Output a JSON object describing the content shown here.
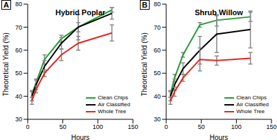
{
  "chart_data": [
    {
      "type": "line",
      "title": "Hybrid Poplar",
      "annotation": "A",
      "x_label": "Hours",
      "y_label": "Theoretical Yield (%)",
      "x": [
        6,
        12,
        24,
        48,
        72,
        120
      ],
      "xlim": [
        0,
        150
      ],
      "xticks": [
        0,
        50,
        100,
        150
      ],
      "ylim": [
        30,
        80
      ],
      "yticks": [
        30,
        40,
        50,
        60,
        70,
        80
      ],
      "grid": false,
      "legend": "lower right",
      "series": [
        {
          "name": "Clean Chips",
          "color": "#1e9e2e",
          "marker": "none",
          "values": [
            41,
            46,
            56,
            65,
            70,
            77.5
          ],
          "errors": [
            1.5,
            1.5,
            2,
            1.5,
            2,
            1
          ]
        },
        {
          "name": "Air Classified",
          "color": "#000000",
          "marker": "none",
          "values": [
            40,
            45,
            53,
            63,
            70,
            76
          ],
          "errors": [
            2,
            2,
            2.5,
            2.5,
            5.5,
            2.5
          ]
        },
        {
          "name": "Whole Tree",
          "color": "#e3231c",
          "marker": "none",
          "values": [
            38,
            43,
            50,
            58,
            63,
            67.5
          ],
          "errors": [
            1.5,
            1.5,
            1.5,
            2.5,
            3,
            3.5
          ]
        }
      ]
    },
    {
      "type": "line",
      "title": "Shrub Willow",
      "annotation": "B",
      "x_label": "Hours",
      "y_label": "Theoretical Yield (%)",
      "x": [
        6,
        12,
        24,
        48,
        72,
        120
      ],
      "xlim": [
        0,
        150
      ],
      "xticks": [
        0,
        50,
        100,
        150
      ],
      "ylim": [
        30,
        80
      ],
      "yticks": [
        30,
        40,
        50,
        60,
        70,
        80
      ],
      "grid": false,
      "legend": "lower right",
      "series": [
        {
          "name": "Clean Chips",
          "color": "#1e9e2e",
          "marker": "none",
          "values": [
            41,
            48,
            58,
            71,
            73,
            74.5
          ],
          "errors": [
            1.5,
            1.5,
            1,
            1,
            2.5,
            2
          ]
        },
        {
          "name": "Air Classified",
          "color": "#000000",
          "marker": "none",
          "values": [
            40,
            45,
            52,
            60,
            67,
            69
          ],
          "errors": [
            2,
            2.5,
            2.5,
            6,
            8,
            8
          ]
        },
        {
          "name": "Whole Tree",
          "color": "#e3231c",
          "marker": "none",
          "values": [
            38,
            42,
            48,
            56,
            55.5,
            56.5
          ],
          "errors": [
            1.5,
            2,
            1.5,
            5,
            2,
            2.5
          ]
        }
      ]
    }
  ]
}
